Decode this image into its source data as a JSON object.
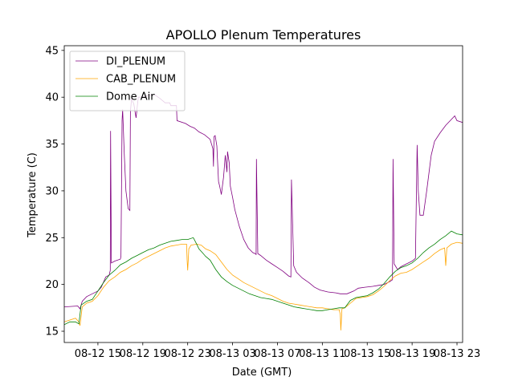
{
  "chart_data": {
    "type": "line",
    "title": "APOLLO Plenum Temperatures",
    "xlabel": "Date (GMT)",
    "ylabel": "Temperature (C)",
    "x_unit": "hours since 08-12 00:00 GMT",
    "xlim": [
      12.0,
      47.5
    ],
    "ylim": [
      13.8,
      45.5
    ],
    "yticks": [
      15,
      20,
      25,
      30,
      35,
      40,
      45
    ],
    "xticks": [
      {
        "value": 15,
        "label": "08-12 15"
      },
      {
        "value": 19,
        "label": "08-12 19"
      },
      {
        "value": 23,
        "label": "08-12 23"
      },
      {
        "value": 27,
        "label": "08-13 03"
      },
      {
        "value": 31,
        "label": "08-13 07"
      },
      {
        "value": 35,
        "label": "08-13 11"
      },
      {
        "value": 39,
        "label": "08-13 15"
      },
      {
        "value": 43,
        "label": "08-13 19"
      },
      {
        "value": 47,
        "label": "08-13 23"
      }
    ],
    "legend_position": "upper-left",
    "series": [
      {
        "name": "DI_PLENUM",
        "color": "#800080",
        "points": [
          [
            12.0,
            17.6
          ],
          [
            13.2,
            17.7
          ],
          [
            13.4,
            17.4
          ],
          [
            13.6,
            18.2
          ],
          [
            14.0,
            18.7
          ],
          [
            14.5,
            19.0
          ],
          [
            15.0,
            19.3
          ],
          [
            15.3,
            19.7
          ],
          [
            15.7,
            20.8
          ],
          [
            16.0,
            21.0
          ],
          [
            16.1,
            21.5
          ],
          [
            16.13,
            36.4
          ],
          [
            16.2,
            22.3
          ],
          [
            16.5,
            22.5
          ],
          [
            17.0,
            22.7
          ],
          [
            17.05,
            23.0
          ],
          [
            17.15,
            37.5
          ],
          [
            17.2,
            38.7
          ],
          [
            17.35,
            34.0
          ],
          [
            17.5,
            30.0
          ],
          [
            17.7,
            28.1
          ],
          [
            17.85,
            27.9
          ],
          [
            17.9,
            38.5
          ],
          [
            18.0,
            39.8
          ],
          [
            18.2,
            39.3
          ],
          [
            18.4,
            37.8
          ],
          [
            18.6,
            40.0
          ],
          [
            19.0,
            40.0
          ],
          [
            19.5,
            40.2
          ],
          [
            20.0,
            40.3
          ],
          [
            20.5,
            39.9
          ],
          [
            21.0,
            39.4
          ],
          [
            21.4,
            39.4
          ],
          [
            21.5,
            39.1
          ],
          [
            22.0,
            39.1
          ],
          [
            22.05,
            37.5
          ],
          [
            22.8,
            37.2
          ],
          [
            23.2,
            36.9
          ],
          [
            23.6,
            36.7
          ],
          [
            24.0,
            36.3
          ],
          [
            24.5,
            36.0
          ],
          [
            25.0,
            35.5
          ],
          [
            25.25,
            34.5
          ],
          [
            25.3,
            32.6
          ],
          [
            25.35,
            35.8
          ],
          [
            25.45,
            35.9
          ],
          [
            25.6,
            34.8
          ],
          [
            25.75,
            31.0
          ],
          [
            25.85,
            30.5
          ],
          [
            26.0,
            29.6
          ],
          [
            26.2,
            31.5
          ],
          [
            26.35,
            33.8
          ],
          [
            26.5,
            32.0
          ],
          [
            26.55,
            34.2
          ],
          [
            26.7,
            33.0
          ],
          [
            26.8,
            30.5
          ],
          [
            26.95,
            29.6
          ],
          [
            27.0,
            29.3
          ],
          [
            27.2,
            28.0
          ],
          [
            27.6,
            26.2
          ],
          [
            28.0,
            24.8
          ],
          [
            28.4,
            23.9
          ],
          [
            28.8,
            23.4
          ],
          [
            29.0,
            23.3
          ],
          [
            29.1,
            23.2
          ],
          [
            29.13,
            33.4
          ],
          [
            29.25,
            23.3
          ],
          [
            29.5,
            23.1
          ],
          [
            30.0,
            22.6
          ],
          [
            30.5,
            22.2
          ],
          [
            31.0,
            21.8
          ],
          [
            31.5,
            21.4
          ],
          [
            32.0,
            20.9
          ],
          [
            32.2,
            20.8
          ],
          [
            32.25,
            31.2
          ],
          [
            32.45,
            22.0
          ],
          [
            32.7,
            21.3
          ],
          [
            33.2,
            20.7
          ],
          [
            33.8,
            20.2
          ],
          [
            34.3,
            19.7
          ],
          [
            34.8,
            19.4
          ],
          [
            35.5,
            19.2
          ],
          [
            36.2,
            19.1
          ],
          [
            36.6,
            19.0
          ],
          [
            37.2,
            19.0
          ],
          [
            37.8,
            19.3
          ],
          [
            38.2,
            19.6
          ],
          [
            38.8,
            19.7
          ],
          [
            39.5,
            19.8
          ],
          [
            40.0,
            19.9
          ],
          [
            40.5,
            20.0
          ],
          [
            41.0,
            20.3
          ],
          [
            41.25,
            20.5
          ],
          [
            41.3,
            33.4
          ],
          [
            41.4,
            22.2
          ],
          [
            41.7,
            21.6
          ],
          [
            42.0,
            21.9
          ],
          [
            42.5,
            22.2
          ],
          [
            43.0,
            22.5
          ],
          [
            43.3,
            22.8
          ],
          [
            43.35,
            27.0
          ],
          [
            43.45,
            34.9
          ],
          [
            43.55,
            30.0
          ],
          [
            43.7,
            27.4
          ],
          [
            44.0,
            27.4
          ],
          [
            44.3,
            30.0
          ],
          [
            44.7,
            33.8
          ],
          [
            45.0,
            35.3
          ],
          [
            45.5,
            36.2
          ],
          [
            46.0,
            37.0
          ],
          [
            46.4,
            37.5
          ],
          [
            46.8,
            38.0
          ],
          [
            47.0,
            37.5
          ],
          [
            47.5,
            37.3
          ]
        ]
      },
      {
        "name": "CAB_PLENUM",
        "color": "#ffa500",
        "points": [
          [
            12.0,
            16.0
          ],
          [
            12.5,
            16.2
          ],
          [
            13.0,
            16.4
          ],
          [
            13.3,
            16.0
          ],
          [
            13.4,
            15.6
          ],
          [
            13.6,
            17.6
          ],
          [
            14.0,
            18.0
          ],
          [
            14.5,
            18.2
          ],
          [
            15.0,
            18.8
          ],
          [
            15.5,
            19.7
          ],
          [
            16.0,
            20.4
          ],
          [
            16.5,
            20.8
          ],
          [
            17.0,
            21.3
          ],
          [
            17.5,
            21.6
          ],
          [
            18.0,
            22.0
          ],
          [
            18.5,
            22.3
          ],
          [
            19.0,
            22.7
          ],
          [
            19.5,
            23.0
          ],
          [
            20.0,
            23.3
          ],
          [
            20.5,
            23.6
          ],
          [
            21.0,
            23.9
          ],
          [
            21.5,
            24.1
          ],
          [
            22.0,
            24.2
          ],
          [
            22.5,
            24.3
          ],
          [
            22.9,
            24.3
          ],
          [
            22.95,
            22.6
          ],
          [
            23.0,
            21.5
          ],
          [
            23.1,
            23.8
          ],
          [
            23.3,
            24.2
          ],
          [
            23.8,
            24.3
          ],
          [
            24.2,
            24.2
          ],
          [
            24.6,
            23.8
          ],
          [
            25.0,
            23.6
          ],
          [
            25.5,
            23.2
          ],
          [
            26.0,
            22.4
          ],
          [
            26.5,
            21.6
          ],
          [
            27.0,
            21.0
          ],
          [
            27.5,
            20.6
          ],
          [
            28.0,
            20.2
          ],
          [
            28.5,
            19.9
          ],
          [
            29.0,
            19.6
          ],
          [
            29.5,
            19.3
          ],
          [
            30.0,
            19.0
          ],
          [
            30.5,
            18.8
          ],
          [
            31.0,
            18.5
          ],
          [
            31.5,
            18.2
          ],
          [
            32.0,
            18.0
          ],
          [
            32.5,
            17.9
          ],
          [
            33.0,
            17.8
          ],
          [
            33.5,
            17.7
          ],
          [
            34.0,
            17.6
          ],
          [
            34.5,
            17.5
          ],
          [
            35.0,
            17.5
          ],
          [
            35.5,
            17.4
          ],
          [
            36.0,
            17.3
          ],
          [
            36.5,
            17.3
          ],
          [
            36.6,
            16.8
          ],
          [
            36.65,
            15.1
          ],
          [
            36.75,
            17.4
          ],
          [
            37.0,
            17.5
          ],
          [
            37.5,
            18.0
          ],
          [
            38.0,
            18.5
          ],
          [
            38.5,
            18.6
          ],
          [
            39.0,
            18.7
          ],
          [
            39.5,
            18.9
          ],
          [
            40.0,
            19.3
          ],
          [
            40.5,
            19.8
          ],
          [
            41.0,
            20.4
          ],
          [
            41.5,
            20.9
          ],
          [
            42.0,
            21.2
          ],
          [
            42.5,
            21.3
          ],
          [
            43.0,
            21.6
          ],
          [
            43.5,
            22.0
          ],
          [
            44.0,
            22.4
          ],
          [
            44.5,
            22.8
          ],
          [
            45.0,
            23.3
          ],
          [
            45.5,
            23.7
          ],
          [
            45.9,
            23.9
          ],
          [
            46.0,
            22.0
          ],
          [
            46.1,
            23.9
          ],
          [
            46.5,
            24.3
          ],
          [
            47.0,
            24.5
          ],
          [
            47.5,
            24.4
          ]
        ]
      },
      {
        "name": "Dome Air",
        "color": "#008000",
        "points": [
          [
            12.0,
            15.7
          ],
          [
            12.5,
            16.0
          ],
          [
            13.0,
            16.0
          ],
          [
            13.3,
            15.8
          ],
          [
            13.5,
            17.8
          ],
          [
            14.0,
            18.2
          ],
          [
            14.5,
            18.4
          ],
          [
            15.0,
            19.3
          ],
          [
            15.5,
            20.2
          ],
          [
            16.0,
            21.0
          ],
          [
            16.5,
            21.5
          ],
          [
            17.0,
            22.1
          ],
          [
            17.5,
            22.4
          ],
          [
            18.0,
            22.8
          ],
          [
            18.5,
            23.1
          ],
          [
            19.0,
            23.4
          ],
          [
            19.5,
            23.7
          ],
          [
            20.0,
            23.9
          ],
          [
            20.5,
            24.2
          ],
          [
            21.0,
            24.4
          ],
          [
            21.5,
            24.6
          ],
          [
            22.0,
            24.7
          ],
          [
            22.5,
            24.8
          ],
          [
            23.0,
            24.8
          ],
          [
            23.5,
            25.0
          ],
          [
            23.8,
            24.3
          ],
          [
            24.0,
            23.8
          ],
          [
            24.3,
            23.4
          ],
          [
            24.6,
            23.0
          ],
          [
            25.0,
            22.6
          ],
          [
            25.5,
            21.6
          ],
          [
            26.0,
            20.8
          ],
          [
            26.5,
            20.3
          ],
          [
            27.0,
            19.9
          ],
          [
            27.5,
            19.6
          ],
          [
            28.0,
            19.3
          ],
          [
            28.5,
            19.0
          ],
          [
            29.0,
            18.8
          ],
          [
            29.5,
            18.6
          ],
          [
            30.0,
            18.5
          ],
          [
            30.5,
            18.4
          ],
          [
            31.0,
            18.2
          ],
          [
            31.5,
            18.0
          ],
          [
            32.0,
            17.8
          ],
          [
            32.5,
            17.6
          ],
          [
            33.0,
            17.5
          ],
          [
            33.5,
            17.4
          ],
          [
            34.0,
            17.3
          ],
          [
            34.5,
            17.2
          ],
          [
            35.0,
            17.2
          ],
          [
            35.5,
            17.3
          ],
          [
            36.0,
            17.4
          ],
          [
            36.5,
            17.5
          ],
          [
            37.0,
            17.5
          ],
          [
            37.5,
            18.3
          ],
          [
            38.0,
            18.6
          ],
          [
            38.5,
            18.7
          ],
          [
            39.0,
            18.8
          ],
          [
            39.5,
            19.1
          ],
          [
            40.0,
            19.5
          ],
          [
            40.5,
            20.1
          ],
          [
            41.0,
            20.8
          ],
          [
            41.5,
            21.4
          ],
          [
            42.0,
            21.8
          ],
          [
            42.5,
            22.0
          ],
          [
            43.0,
            22.3
          ],
          [
            43.5,
            22.8
          ],
          [
            44.0,
            23.4
          ],
          [
            44.5,
            23.9
          ],
          [
            45.0,
            24.3
          ],
          [
            45.5,
            24.8
          ],
          [
            46.0,
            25.2
          ],
          [
            46.5,
            25.7
          ],
          [
            47.0,
            25.4
          ],
          [
            47.5,
            25.3
          ]
        ]
      }
    ]
  }
}
